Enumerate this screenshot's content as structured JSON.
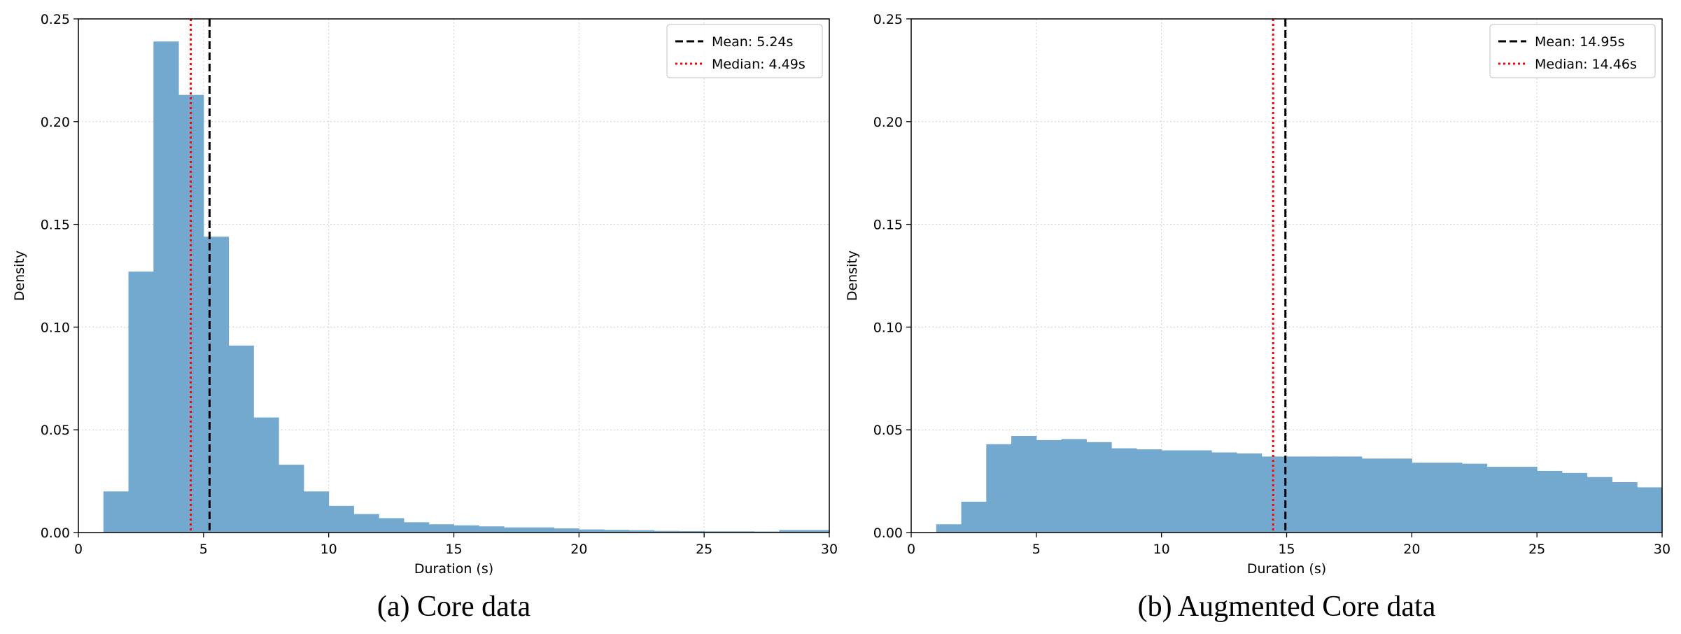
{
  "chart_data": [
    {
      "type": "bar",
      "caption": "(a) Core data",
      "xlabel": "Duration (s)",
      "ylabel": "Density",
      "xlim": [
        0,
        30
      ],
      "ylim": [
        0,
        0.25
      ],
      "xticks": [
        "0",
        "5",
        "10",
        "15",
        "20",
        "25",
        "30"
      ],
      "yticks": [
        "0.00",
        "0.05",
        "0.10",
        "0.15",
        "0.20",
        "0.25"
      ],
      "grid": true,
      "bar_color": "#74a9cf",
      "bins": [
        {
          "x0": 1,
          "x1": 2,
          "v": 0.02
        },
        {
          "x0": 2,
          "x1": 3,
          "v": 0.127
        },
        {
          "x0": 3,
          "x1": 4,
          "v": 0.239
        },
        {
          "x0": 4,
          "x1": 5,
          "v": 0.213
        },
        {
          "x0": 5,
          "x1": 6,
          "v": 0.144
        },
        {
          "x0": 6,
          "x1": 7,
          "v": 0.091
        },
        {
          "x0": 7,
          "x1": 8,
          "v": 0.056
        },
        {
          "x0": 8,
          "x1": 9,
          "v": 0.033
        },
        {
          "x0": 9,
          "x1": 10,
          "v": 0.02
        },
        {
          "x0": 10,
          "x1": 11,
          "v": 0.013
        },
        {
          "x0": 11,
          "x1": 12,
          "v": 0.009
        },
        {
          "x0": 12,
          "x1": 13,
          "v": 0.007
        },
        {
          "x0": 13,
          "x1": 14,
          "v": 0.005
        },
        {
          "x0": 14,
          "x1": 15,
          "v": 0.004
        },
        {
          "x0": 15,
          "x1": 16,
          "v": 0.0035
        },
        {
          "x0": 16,
          "x1": 17,
          "v": 0.003
        },
        {
          "x0": 17,
          "x1": 18,
          "v": 0.0025
        },
        {
          "x0": 18,
          "x1": 19,
          "v": 0.0025
        },
        {
          "x0": 19,
          "x1": 20,
          "v": 0.002
        },
        {
          "x0": 20,
          "x1": 21,
          "v": 0.0015
        },
        {
          "x0": 21,
          "x1": 22,
          "v": 0.0013
        },
        {
          "x0": 22,
          "x1": 23,
          "v": 0.0011
        },
        {
          "x0": 23,
          "x1": 24,
          "v": 0.0008
        },
        {
          "x0": 24,
          "x1": 25,
          "v": 0.0007
        },
        {
          "x0": 25,
          "x1": 26,
          "v": 0.0006
        },
        {
          "x0": 26,
          "x1": 27,
          "v": 0.0006
        },
        {
          "x0": 27,
          "x1": 28,
          "v": 0.0005
        },
        {
          "x0": 28,
          "x1": 29,
          "v": 0.0012
        },
        {
          "x0": 29,
          "x1": 30,
          "v": 0.0012
        }
      ],
      "lines": [
        {
          "label": "Mean: 5.24s",
          "x": 5.24,
          "color": "#000000",
          "style": "dashed"
        },
        {
          "label": "Median: 4.49s",
          "x": 4.49,
          "color": "#ff0000",
          "style": "dotted"
        }
      ],
      "legend_position": "top-right"
    },
    {
      "type": "bar",
      "caption": "(b) Augmented Core data",
      "xlabel": "Duration (s)",
      "ylabel": "Density",
      "xlim": [
        0,
        30
      ],
      "ylim": [
        0,
        0.25
      ],
      "xticks": [
        "0",
        "5",
        "10",
        "15",
        "20",
        "25",
        "30"
      ],
      "yticks": [
        "0.00",
        "0.05",
        "0.10",
        "0.15",
        "0.20",
        "0.25"
      ],
      "grid": true,
      "bar_color": "#74a9cf",
      "bins": [
        {
          "x0": 1,
          "x1": 2,
          "v": 0.004
        },
        {
          "x0": 2,
          "x1": 3,
          "v": 0.015
        },
        {
          "x0": 3,
          "x1": 4,
          "v": 0.043
        },
        {
          "x0": 4,
          "x1": 5,
          "v": 0.047
        },
        {
          "x0": 5,
          "x1": 6,
          "v": 0.045
        },
        {
          "x0": 6,
          "x1": 7,
          "v": 0.0455
        },
        {
          "x0": 7,
          "x1": 8,
          "v": 0.044
        },
        {
          "x0": 8,
          "x1": 9,
          "v": 0.041
        },
        {
          "x0": 9,
          "x1": 10,
          "v": 0.0405
        },
        {
          "x0": 10,
          "x1": 11,
          "v": 0.04
        },
        {
          "x0": 11,
          "x1": 12,
          "v": 0.04
        },
        {
          "x0": 12,
          "x1": 13,
          "v": 0.039
        },
        {
          "x0": 13,
          "x1": 14,
          "v": 0.0385
        },
        {
          "x0": 14,
          "x1": 15,
          "v": 0.037
        },
        {
          "x0": 15,
          "x1": 16,
          "v": 0.037
        },
        {
          "x0": 16,
          "x1": 17,
          "v": 0.037
        },
        {
          "x0": 17,
          "x1": 18,
          "v": 0.037
        },
        {
          "x0": 18,
          "x1": 19,
          "v": 0.036
        },
        {
          "x0": 19,
          "x1": 20,
          "v": 0.036
        },
        {
          "x0": 20,
          "x1": 21,
          "v": 0.034
        },
        {
          "x0": 21,
          "x1": 22,
          "v": 0.034
        },
        {
          "x0": 22,
          "x1": 23,
          "v": 0.0335
        },
        {
          "x0": 23,
          "x1": 24,
          "v": 0.032
        },
        {
          "x0": 24,
          "x1": 25,
          "v": 0.032
        },
        {
          "x0": 25,
          "x1": 26,
          "v": 0.03
        },
        {
          "x0": 26,
          "x1": 27,
          "v": 0.029
        },
        {
          "x0": 27,
          "x1": 28,
          "v": 0.027
        },
        {
          "x0": 28,
          "x1": 29,
          "v": 0.0245
        },
        {
          "x0": 29,
          "x1": 30,
          "v": 0.022
        }
      ],
      "lines": [
        {
          "label": "Mean: 14.95s",
          "x": 14.95,
          "color": "#000000",
          "style": "dashed"
        },
        {
          "label": "Median: 14.46s",
          "x": 14.46,
          "color": "#ff0000",
          "style": "dotted"
        }
      ],
      "legend_position": "top-right"
    }
  ]
}
